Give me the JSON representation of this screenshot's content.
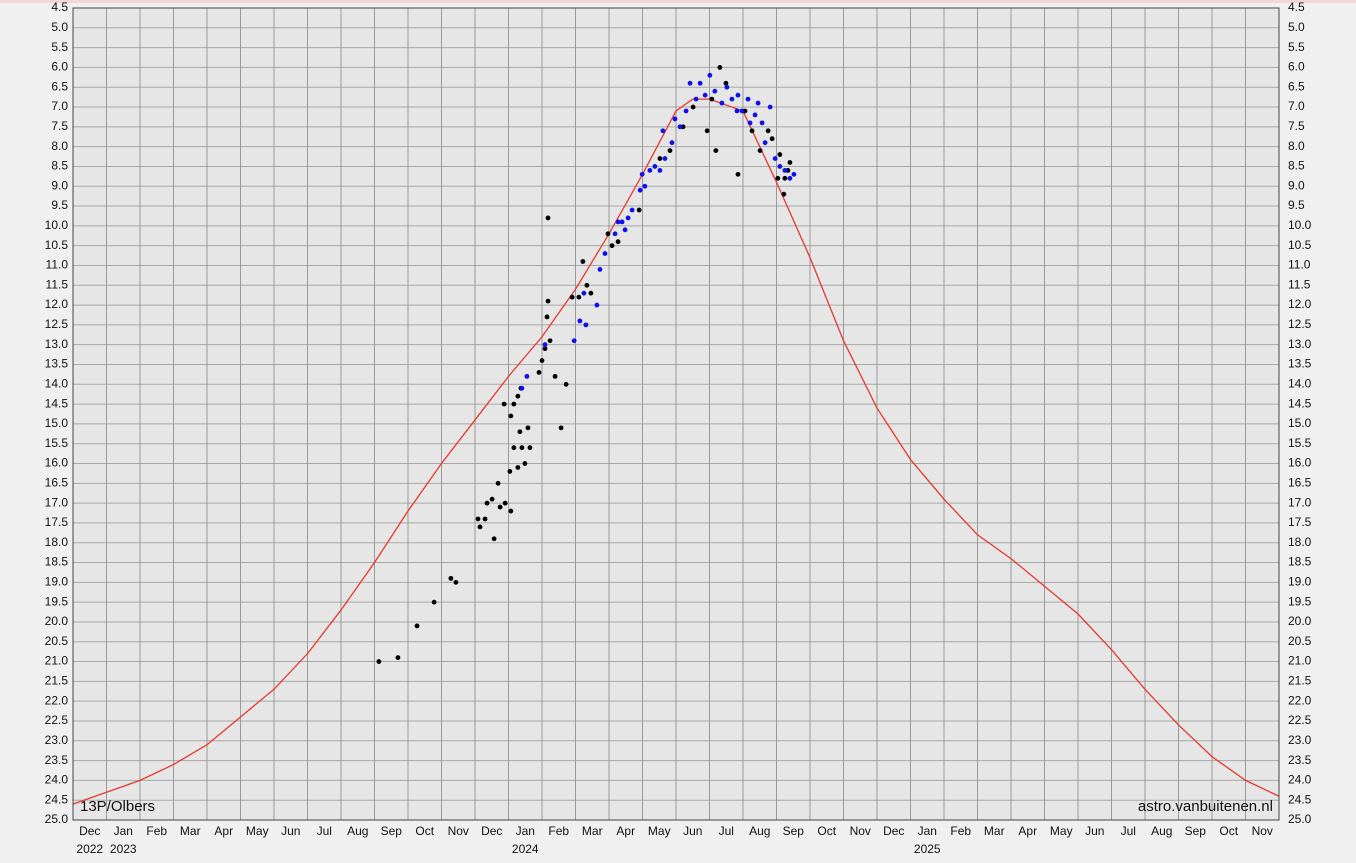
{
  "chart_data": {
    "type": "scatter",
    "annotations": [
      "13P/Olbers",
      "astro.vanbuitenen.nl"
    ],
    "xlim": [
      0,
      36
    ],
    "xticks": [
      {
        "value": 0,
        "label": "Dec"
      },
      {
        "value": 1,
        "label": "Jan"
      },
      {
        "value": 2,
        "label": "Feb"
      },
      {
        "value": 3,
        "label": "Mar"
      },
      {
        "value": 4,
        "label": "Apr"
      },
      {
        "value": 5,
        "label": "May"
      },
      {
        "value": 6,
        "label": "Jun"
      },
      {
        "value": 7,
        "label": "Jul"
      },
      {
        "value": 8,
        "label": "Aug"
      },
      {
        "value": 9,
        "label": "Sep"
      },
      {
        "value": 10,
        "label": "Oct"
      },
      {
        "value": 11,
        "label": "Nov"
      },
      {
        "value": 12,
        "label": "Dec"
      },
      {
        "value": 13,
        "label": "Jan"
      },
      {
        "value": 14,
        "label": "Feb"
      },
      {
        "value": 15,
        "label": "Mar"
      },
      {
        "value": 16,
        "label": "Apr"
      },
      {
        "value": 17,
        "label": "May"
      },
      {
        "value": 18,
        "label": "Jun"
      },
      {
        "value": 19,
        "label": "Jul"
      },
      {
        "value": 20,
        "label": "Aug"
      },
      {
        "value": 21,
        "label": "Sep"
      },
      {
        "value": 22,
        "label": "Oct"
      },
      {
        "value": 23,
        "label": "Nov"
      },
      {
        "value": 24,
        "label": "Dec"
      },
      {
        "value": 25,
        "label": "Jan"
      },
      {
        "value": 26,
        "label": "Feb"
      },
      {
        "value": 27,
        "label": "Mar"
      },
      {
        "value": 28,
        "label": "Apr"
      },
      {
        "value": 29,
        "label": "May"
      },
      {
        "value": 30,
        "label": "Jun"
      },
      {
        "value": 31,
        "label": "Jul"
      },
      {
        "value": 32,
        "label": "Aug"
      },
      {
        "value": 33,
        "label": "Sep"
      },
      {
        "value": 34,
        "label": "Oct"
      },
      {
        "value": 35,
        "label": "Nov"
      }
    ],
    "year_labels": [
      {
        "value": 0,
        "label": "2022"
      },
      {
        "value": 1,
        "label": "2023"
      },
      {
        "value": 13,
        "label": "2024"
      },
      {
        "value": 25,
        "label": "2025"
      }
    ],
    "ylim": [
      25,
      4.5
    ],
    "yticks": [
      4.5,
      {
        "value": 5,
        "label": "5.0"
      },
      5.5,
      {
        "value": 6,
        "label": "6.0"
      },
      6.5,
      {
        "value": 7,
        "label": "7.0"
      },
      7.5,
      {
        "value": 8,
        "label": "8.0"
      },
      8.5,
      {
        "value": 9,
        "label": "9.0"
      },
      9.5,
      {
        "value": 10,
        "label": "10.0"
      },
      10.5,
      {
        "value": 11,
        "label": "11.0"
      },
      11.5,
      {
        "value": 12,
        "label": "12.0"
      },
      12.5,
      {
        "value": 13,
        "label": "13.0"
      },
      13.5,
      {
        "value": 14,
        "label": "14.0"
      },
      14.5,
      {
        "value": 15,
        "label": "15.0"
      },
      15.5,
      {
        "value": 16,
        "label": "16.0"
      },
      16.5,
      {
        "value": 17,
        "label": "17.0"
      },
      17.5,
      {
        "value": 18,
        "label": "18.0"
      },
      18.5,
      {
        "value": 19,
        "label": "19.0"
      },
      19.5,
      {
        "value": 20,
        "label": "20.0"
      },
      20.5,
      {
        "value": 21,
        "label": "21.0"
      },
      21.5,
      {
        "value": 22,
        "label": "22.0"
      },
      22.5,
      {
        "value": 23,
        "label": "23.0"
      },
      23.5,
      {
        "value": 24,
        "label": "24.0"
      },
      24.5,
      {
        "value": 25,
        "label": "25.0"
      }
    ],
    "grid": true,
    "series": [
      {
        "type": "line",
        "color": "#e8382e",
        "x": [
          0,
          1,
          2,
          3,
          4,
          5,
          6,
          7,
          8,
          9,
          10,
          11,
          12,
          13,
          14,
          15,
          16,
          17,
          18,
          18.5,
          19,
          20,
          21,
          22,
          23,
          24,
          25,
          26,
          27,
          28,
          29,
          30,
          31,
          32,
          33,
          34,
          35,
          36
        ],
        "values": [
          24.6,
          24.3,
          24.0,
          23.6,
          23.1,
          22.4,
          21.7,
          20.8,
          19.7,
          18.5,
          17.2,
          16.0,
          14.9,
          13.8,
          12.8,
          11.6,
          10.2,
          8.7,
          7.1,
          6.8,
          6.8,
          7.1,
          8.9,
          10.8,
          12.9,
          14.6,
          15.9,
          16.9,
          17.8,
          18.4,
          19.1,
          19.8,
          20.7,
          21.7,
          22.6,
          23.4,
          24.0,
          24.4
        ]
      },
      {
        "type": "scatter",
        "color": "#000000",
        "x": [
          9.13,
          9.7,
          10.27,
          10.78,
          11.28,
          11.43,
          12.09,
          12.15,
          12.3,
          12.36,
          12.51,
          12.57,
          12.69,
          12.75,
          12.9,
          13.07,
          13.04,
          13.16,
          13.28,
          13.34,
          13.4,
          13.49,
          13.58,
          13.64,
          12.87,
          13.07,
          13.16,
          13.28,
          13.37,
          13.91,
          14.0,
          14.09,
          14.15,
          14.18,
          14.18,
          14.24,
          14.39,
          14.57,
          14.72,
          14.9,
          15.1,
          15.22,
          15.34,
          15.46,
          15.97,
          16.09,
          16.27,
          16.9,
          17.52,
          17.82,
          18.21,
          18.51,
          18.93,
          19.07,
          19.19,
          19.31,
          19.49,
          19.85,
          20.06,
          20.27,
          20.51,
          20.75,
          20.87,
          21.1,
          21.22,
          21.34,
          21.4,
          21.04,
          21.25
        ],
        "values": [
          21.0,
          20.9,
          20.1,
          19.5,
          18.9,
          19.0,
          17.4,
          17.6,
          17.4,
          17.0,
          16.9,
          17.9,
          16.5,
          17.1,
          17.0,
          17.2,
          16.2,
          15.6,
          16.1,
          15.2,
          15.6,
          16.0,
          15.1,
          15.6,
          14.5,
          14.8,
          14.5,
          14.3,
          14.1,
          13.7,
          13.4,
          13.1,
          12.3,
          11.9,
          9.8,
          12.9,
          13.8,
          15.1,
          14.0,
          11.8,
          11.8,
          10.9,
          11.5,
          11.7,
          10.2,
          10.5,
          10.4,
          9.6,
          8.3,
          8.1,
          7.5,
          7.0,
          7.6,
          6.8,
          8.1,
          6.0,
          6.4,
          8.7,
          7.1,
          7.6,
          8.1,
          7.6,
          7.8,
          8.2,
          9.2,
          8.6,
          8.4,
          8.8,
          8.8
        ]
      },
      {
        "type": "scatter",
        "color": "#1010ee",
        "x": [
          13.4,
          13.55,
          14.09,
          14.96,
          15.13,
          15.31,
          15.25,
          15.64,
          15.73,
          15.88,
          16.18,
          16.27,
          16.39,
          16.48,
          16.57,
          16.69,
          16.93,
          16.99,
          17.07,
          17.22,
          17.37,
          17.52,
          17.67,
          17.61,
          17.88,
          17.97,
          18.12,
          18.3,
          18.42,
          18.6,
          18.72,
          18.87,
          19.01,
          19.16,
          19.37,
          19.52,
          19.67,
          19.85,
          19.97,
          20.15,
          20.36,
          20.45,
          20.57,
          20.66,
          20.81,
          20.96,
          21.1,
          21.25,
          21.4,
          21.52,
          19.82,
          20.21
        ],
        "values": [
          14.1,
          13.8,
          13.0,
          12.9,
          12.4,
          12.5,
          11.7,
          12.0,
          11.1,
          10.7,
          10.2,
          9.9,
          9.9,
          10.1,
          9.8,
          9.6,
          9.1,
          8.7,
          9.0,
          8.6,
          8.5,
          8.6,
          8.3,
          7.6,
          7.9,
          7.3,
          7.5,
          7.1,
          6.4,
          6.8,
          6.4,
          6.7,
          6.2,
          6.6,
          6.9,
          6.5,
          6.8,
          6.7,
          7.1,
          6.8,
          7.2,
          6.9,
          7.4,
          7.9,
          7.0,
          8.3,
          8.5,
          8.6,
          8.8,
          8.7,
          7.1,
          7.4
        ]
      }
    ]
  }
}
